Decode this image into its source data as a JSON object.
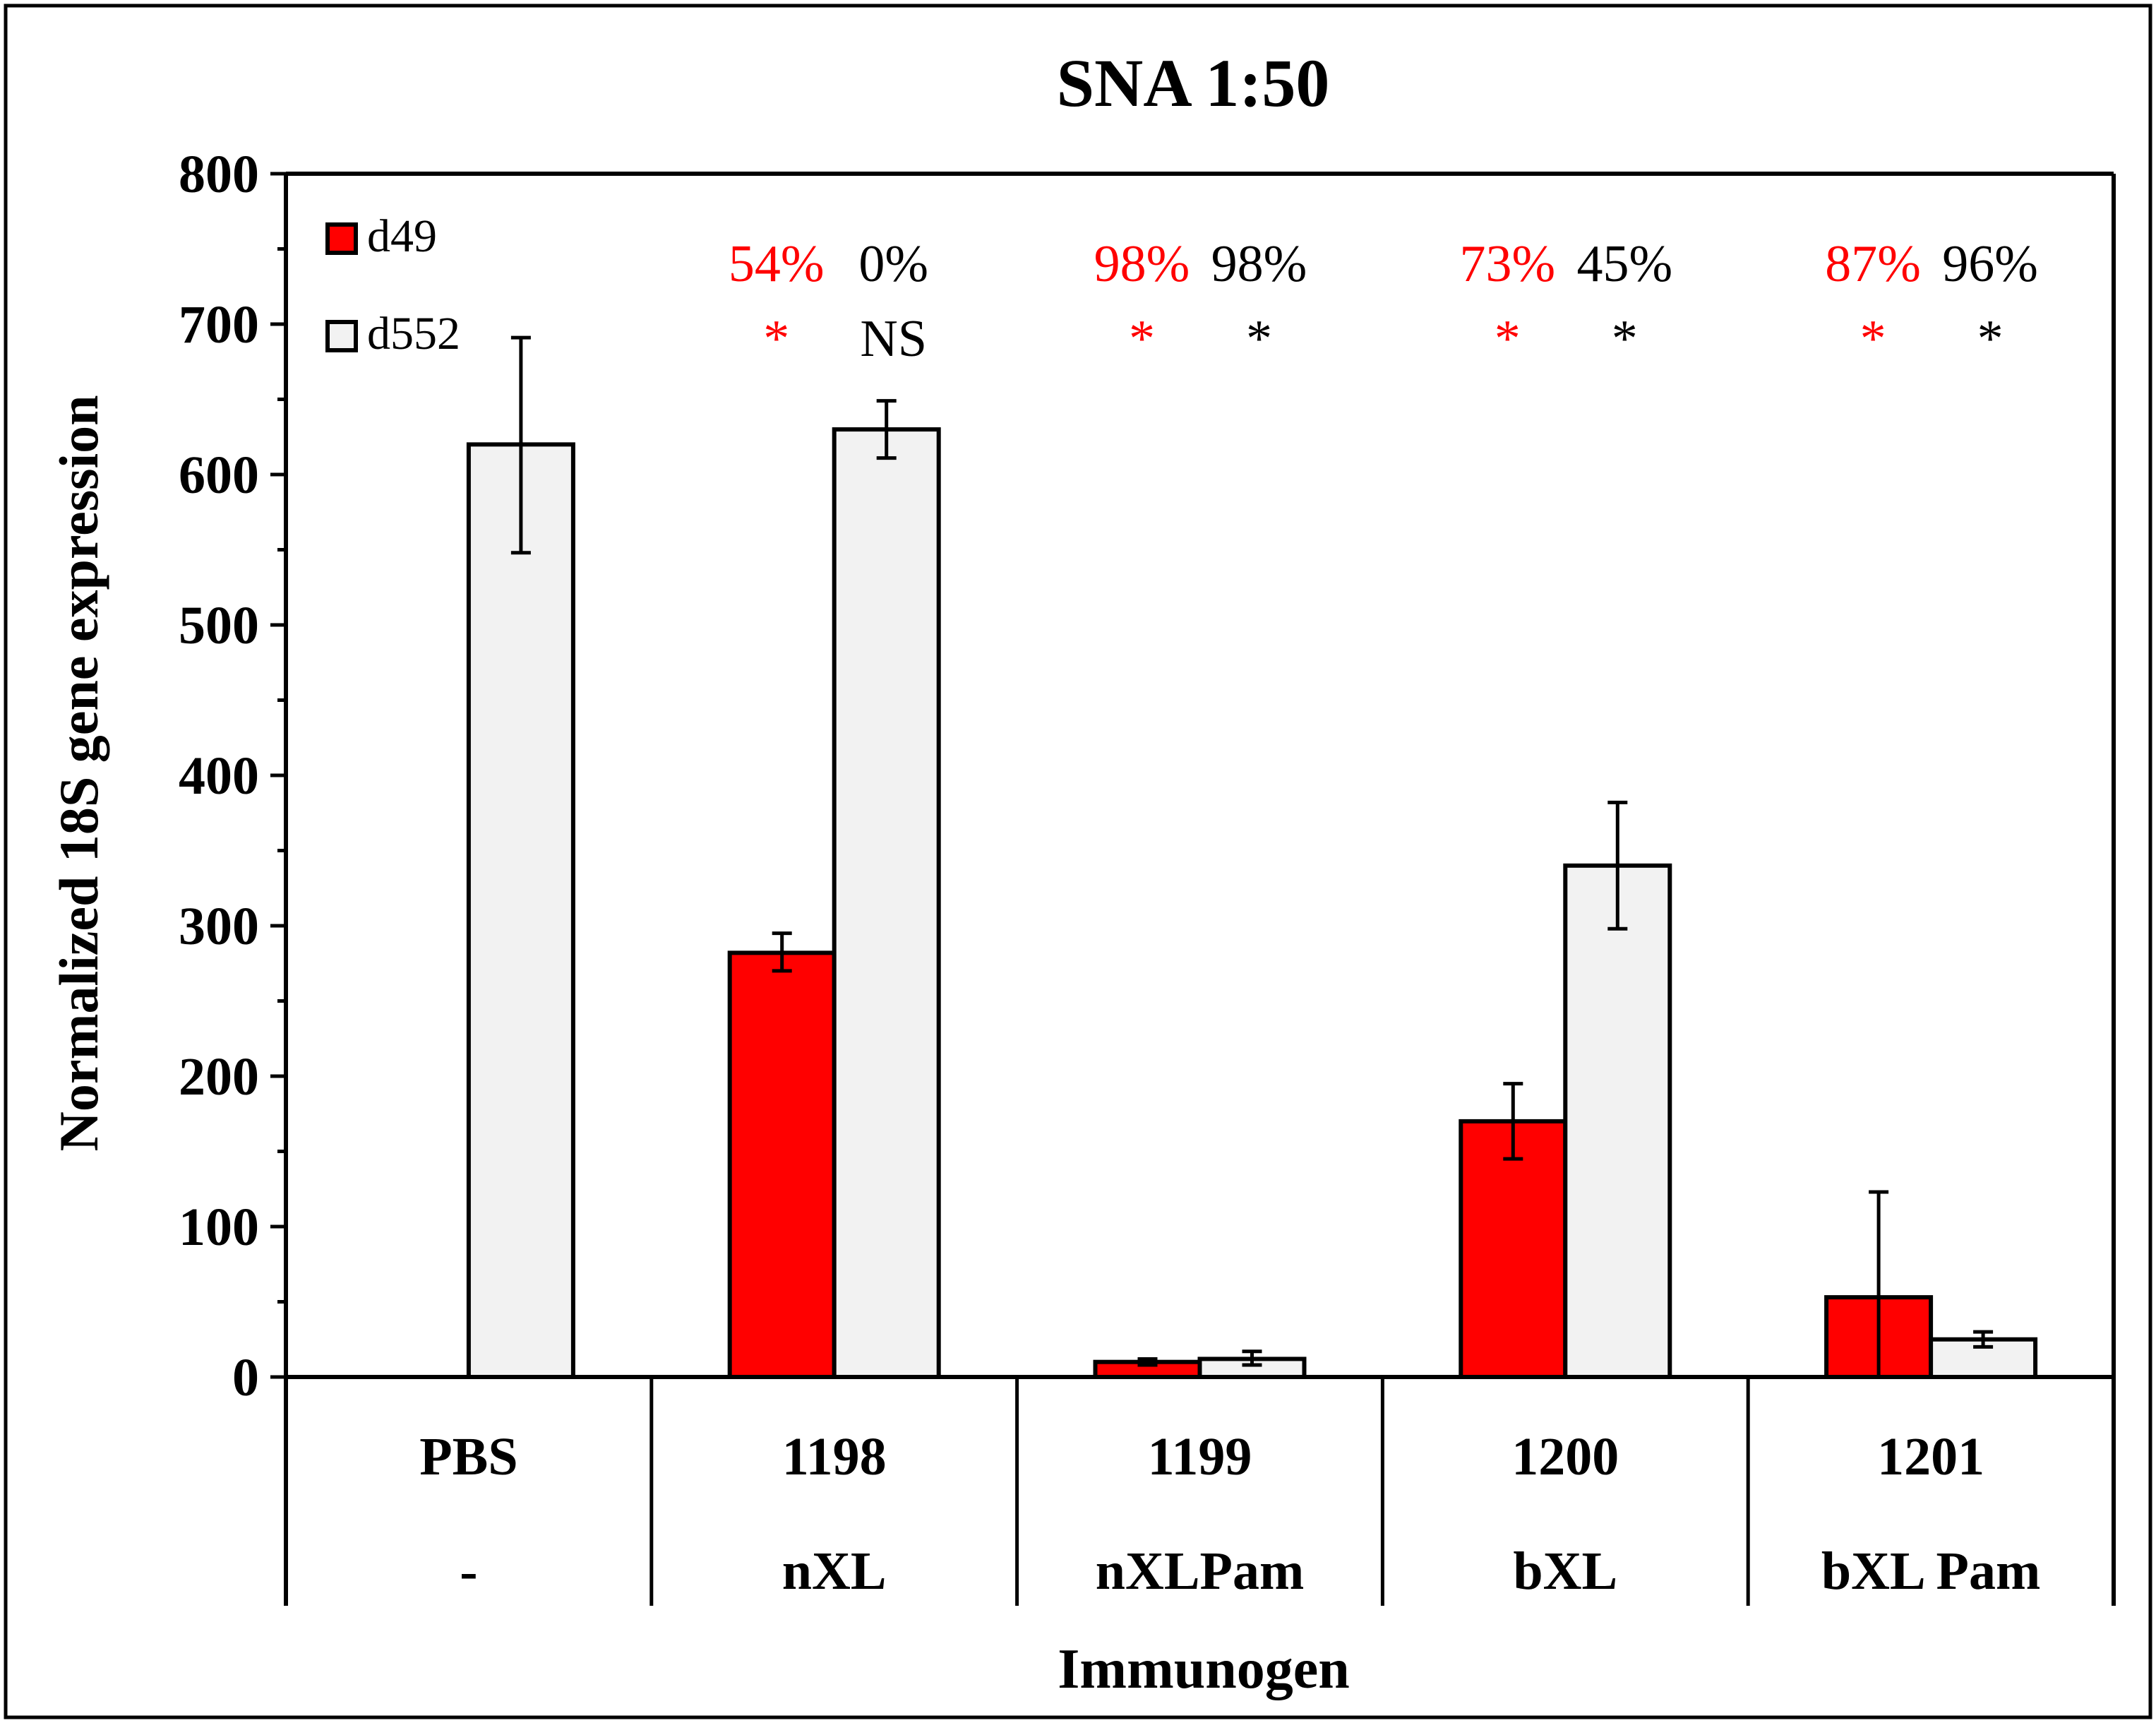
{
  "chart_data": {
    "type": "bar",
    "title": "SNA 1:50",
    "ylabel": "Normalized 18S gene expression",
    "xlabel": "Immunogen",
    "ylim": [
      0,
      800
    ],
    "yticks": [
      0,
      100,
      200,
      300,
      400,
      500,
      600,
      700,
      800
    ],
    "categories": [
      "PBS",
      "1198",
      "1199",
      "1200",
      "1201"
    ],
    "subcategories": [
      "-",
      "nXL",
      "nXLPam",
      "bXL",
      "bXL Pam"
    ],
    "series": [
      {
        "name": "d49",
        "color": "#ff0000",
        "values": [
          null,
          282,
          10,
          170,
          53
        ],
        "err_low": [
          null,
          270,
          8,
          145,
          0
        ],
        "err_high": [
          null,
          295,
          12,
          195,
          123
        ]
      },
      {
        "name": "d552",
        "color": "#f2f2f2",
        "values": [
          620,
          630,
          12,
          340,
          25
        ],
        "err_low": [
          548,
          611,
          8,
          298,
          20
        ],
        "err_high": [
          691,
          649,
          17,
          382,
          30
        ]
      }
    ],
    "annotations": [
      {
        "category": "1198",
        "d49_pct": "54%",
        "d49_sig": "*",
        "d552_pct": "0%",
        "d552_sig": "NS"
      },
      {
        "category": "1199",
        "d49_pct": "98%",
        "d49_sig": "*",
        "d552_pct": "98%",
        "d552_sig": "*"
      },
      {
        "category": "1200",
        "d49_pct": "73%",
        "d49_sig": "*",
        "d552_pct": "45%",
        "d552_sig": "*"
      },
      {
        "category": "1201",
        "d49_pct": "87%",
        "d49_sig": "*",
        "d552_pct": "96%",
        "d552_sig": "*"
      }
    ],
    "annotation_colors": {
      "d49": "#ff0000",
      "d552": "#000000"
    },
    "legend": [
      {
        "label": "d49",
        "color": "#ff0000"
      },
      {
        "label": "d552",
        "color": "#f2f2f2"
      }
    ],
    "legend_position": "top-left",
    "grid": false
  }
}
